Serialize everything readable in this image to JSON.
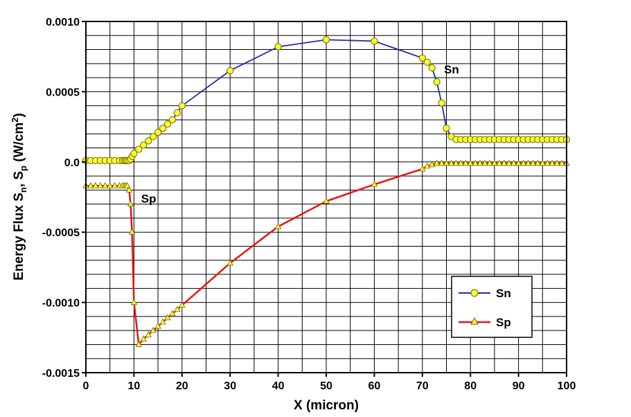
{
  "chart_data": {
    "type": "line",
    "title": "",
    "xlabel": "X (micron)",
    "ylabel": {
      "prefix": "Energy Flux S",
      "sub1": "n",
      "mid": ", S",
      "sub2": "p",
      "units_prefix": " (W/cm",
      "sup": "2",
      "units_suffix": ")"
    },
    "xlim": [
      0,
      100
    ],
    "ylim": [
      -0.0015,
      0.001
    ],
    "grid": true,
    "x_ticks": [
      0,
      10,
      20,
      30,
      40,
      50,
      60,
      70,
      80,
      90,
      100
    ],
    "y_ticks": [
      {
        "value": 0.001,
        "label": "0.0010"
      },
      {
        "value": 0.0005,
        "label": "0.0005"
      },
      {
        "value": 0.0,
        "label": "0.0"
      },
      {
        "value": -0.0005,
        "label": "-0.0005"
      },
      {
        "value": -0.001,
        "label": "-0.0010"
      },
      {
        "value": -0.0015,
        "label": "-0.0015"
      }
    ],
    "legend_position": "bottom-right",
    "annotations": [
      {
        "text": "Sn",
        "x": 74.5,
        "y": 0.00066
      },
      {
        "text": "Sp",
        "x": 11.5,
        "y": -0.00026
      }
    ],
    "series": [
      {
        "name": "Sn",
        "line_color": "#1f2f9f",
        "marker": "circle",
        "marker_fill": "#ffff33",
        "x": [
          0,
          1,
          2,
          3,
          4,
          5,
          6,
          7,
          7.6,
          8,
          8.3,
          8.6,
          9,
          9.3,
          9.6,
          10,
          11,
          12,
          13,
          14,
          15,
          16,
          17,
          18,
          19,
          20,
          30,
          40,
          50,
          60,
          70,
          71,
          72,
          73,
          74,
          75,
          76,
          77,
          78,
          79,
          80,
          81,
          82,
          83,
          84,
          85,
          86,
          87,
          88,
          89,
          90,
          91,
          92,
          93,
          94,
          95,
          96,
          97,
          98,
          99,
          100
        ],
        "y": [
          1e-05,
          1e-05,
          1e-05,
          1e-05,
          1e-05,
          1e-05,
          1e-05,
          1e-05,
          1e-05,
          1e-05,
          1e-05,
          1e-05,
          1e-05,
          2e-05,
          4e-05,
          6e-05,
          9e-05,
          0.00012,
          0.00015,
          0.00018,
          0.00021,
          0.00024,
          0.00027,
          0.0003,
          0.00035,
          0.0004,
          0.00065,
          0.00082,
          0.00087,
          0.00086,
          0.00074,
          0.00071,
          0.00067,
          0.00057,
          0.00042,
          0.00024,
          0.00018,
          0.00016,
          0.00016,
          0.00016,
          0.00016,
          0.00016,
          0.00016,
          0.00016,
          0.00016,
          0.00016,
          0.00016,
          0.00016,
          0.00016,
          0.00016,
          0.00016,
          0.00016,
          0.00016,
          0.00016,
          0.00016,
          0.00016,
          0.00016,
          0.00016,
          0.00016,
          0.00016,
          0.00016
        ]
      },
      {
        "name": "Sp",
        "line_color": "#ee1111",
        "marker": "triangle",
        "marker_fill": "#ffff33",
        "x": [
          0,
          1,
          2,
          3,
          4,
          5,
          6,
          7,
          7.6,
          8,
          8.3,
          8.6,
          9,
          9.3,
          9.6,
          10,
          11,
          12,
          13,
          14,
          15,
          16,
          17,
          18,
          19,
          20,
          30,
          40,
          50,
          60,
          70,
          71,
          72,
          73,
          74,
          75,
          76,
          77,
          78,
          79,
          80,
          81,
          82,
          83,
          84,
          85,
          86,
          87,
          88,
          89,
          90,
          91,
          92,
          93,
          94,
          95,
          96,
          97,
          98,
          99,
          100
        ],
        "y": [
          -0.00017,
          -0.00017,
          -0.00017,
          -0.00017,
          -0.00017,
          -0.00017,
          -0.00017,
          -0.00017,
          -0.00017,
          -0.00017,
          -0.00017,
          -0.00017,
          -0.0002,
          -0.0003,
          -0.0005,
          -0.001,
          -0.0013,
          -0.00126,
          -0.00123,
          -0.0012,
          -0.00117,
          -0.00114,
          -0.00111,
          -0.00108,
          -0.00105,
          -0.00102,
          -0.00072,
          -0.00046,
          -0.00028,
          -0.00016,
          -5e-05,
          -3e-05,
          -2e-05,
          -1e-05,
          -1e-05,
          -1e-05,
          -1e-05,
          -1e-05,
          -1e-05,
          -1e-05,
          -1e-05,
          -1e-05,
          -1e-05,
          -1e-05,
          -1e-05,
          -1e-05,
          -1e-05,
          -1e-05,
          -1e-05,
          -1e-05,
          -1e-05,
          -1e-05,
          -1e-05,
          -1e-05,
          -1e-05,
          -1e-05,
          -1e-05,
          -1e-05,
          -1e-05,
          -1e-05,
          -1e-05
        ]
      }
    ]
  }
}
